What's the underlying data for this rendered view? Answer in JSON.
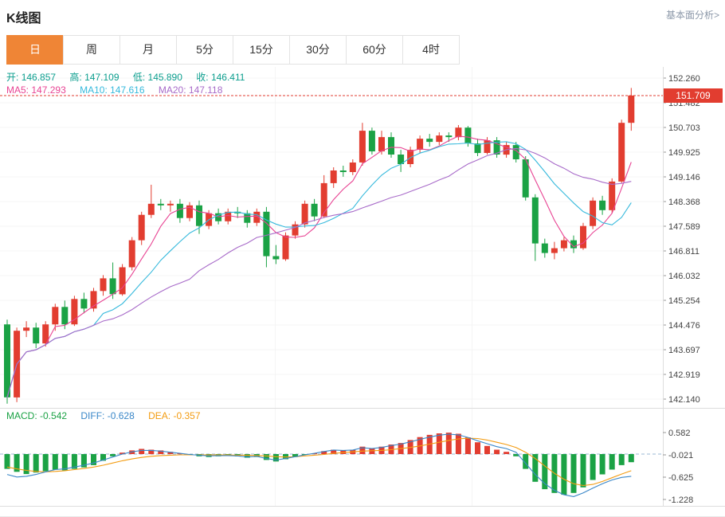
{
  "header": {
    "title": "K线图",
    "link": "基本面分析>"
  },
  "tabs": {
    "items": [
      {
        "label": "日",
        "active": true
      },
      {
        "label": "周",
        "active": false
      },
      {
        "label": "月",
        "active": false
      },
      {
        "label": "5分",
        "active": false
      },
      {
        "label": "15分",
        "active": false
      },
      {
        "label": "30分",
        "active": false
      },
      {
        "label": "60分",
        "active": false
      },
      {
        "label": "4时",
        "active": false
      }
    ]
  },
  "legend": {
    "ohlc": {
      "open_label": "开:",
      "open": "146.857",
      "high_label": "高:",
      "high": "147.109",
      "low_label": "低:",
      "low": "145.890",
      "close_label": "收:",
      "close": "146.411"
    },
    "ma": {
      "ma5_label": "MA5:",
      "ma5": "147.293",
      "ma10_label": "MA10:",
      "ma10": "147.616",
      "ma20_label": "MA20:",
      "ma20": "147.118"
    },
    "macd": {
      "macd_label": "MACD:",
      "macd": "-0.542",
      "diff_label": "DIFF:",
      "diff": "-0.628",
      "dea_label": "DEA:",
      "dea": "-0.357"
    }
  },
  "colors": {
    "up": "#e23d30",
    "down": "#1ba245",
    "ma5": "#e84393",
    "ma10": "#35b9dc",
    "ma20": "#a86bc9",
    "diff": "#3a87c8",
    "dea": "#f39c12",
    "accent": "#ef8536",
    "ohlc_text": "#0b9e8e",
    "link_text": "#8b97a8",
    "axis_text": "#444444",
    "grid": "#f4f4f4",
    "border": "#dddddd",
    "zero_line": "#9bb8d4"
  },
  "chart_data": {
    "type": "candlestick",
    "title": "K线图",
    "period_selected": "日",
    "last_price": "151.709",
    "y_ticks": [
      "152.260",
      "151.482",
      "150.703",
      "149.925",
      "149.146",
      "148.368",
      "147.589",
      "146.811",
      "146.032",
      "145.254",
      "144.476",
      "143.697",
      "142.919",
      "142.140"
    ],
    "ma_periods": [
      5,
      10,
      20
    ],
    "candles": [
      [
        144.5,
        144.65,
        142.0,
        142.2
      ],
      [
        142.2,
        144.4,
        142.05,
        144.3
      ],
      [
        144.3,
        144.6,
        144.1,
        144.4
      ],
      [
        144.4,
        144.55,
        143.75,
        143.9
      ],
      [
        143.9,
        144.6,
        143.8,
        144.5
      ],
      [
        144.5,
        145.15,
        144.3,
        145.05
      ],
      [
        145.05,
        145.25,
        144.35,
        144.5
      ],
      [
        144.5,
        145.4,
        144.45,
        145.3
      ],
      [
        145.3,
        145.5,
        144.85,
        145.0
      ],
      [
        145.0,
        145.65,
        144.9,
        145.55
      ],
      [
        145.55,
        146.05,
        145.4,
        145.95
      ],
      [
        145.95,
        146.45,
        145.3,
        145.45
      ],
      [
        145.45,
        146.4,
        145.4,
        146.3
      ],
      [
        146.3,
        147.25,
        146.2,
        147.15
      ],
      [
        147.15,
        148.05,
        147.0,
        147.95
      ],
      [
        147.95,
        148.9,
        147.85,
        148.3
      ],
      [
        148.3,
        148.45,
        148.1,
        148.25
      ],
      [
        148.25,
        148.4,
        148.05,
        148.3
      ],
      [
        148.3,
        148.45,
        147.7,
        147.85
      ],
      [
        147.85,
        148.35,
        147.75,
        148.25
      ],
      [
        148.25,
        148.4,
        147.35,
        147.6
      ],
      [
        147.6,
        148.1,
        147.5,
        148.0
      ],
      [
        148.0,
        148.15,
        147.65,
        147.75
      ],
      [
        147.75,
        148.15,
        147.65,
        148.05
      ],
      [
        148.05,
        148.2,
        147.85,
        148.0
      ],
      [
        148.0,
        148.1,
        147.55,
        147.7
      ],
      [
        147.7,
        148.15,
        147.6,
        148.05
      ],
      [
        148.05,
        148.2,
        146.3,
        146.65
      ],
      [
        146.65,
        147.0,
        146.4,
        146.55
      ],
      [
        146.55,
        147.4,
        146.5,
        147.3
      ],
      [
        147.3,
        147.75,
        147.2,
        147.65
      ],
      [
        147.65,
        148.4,
        147.55,
        148.3
      ],
      [
        148.3,
        148.45,
        147.75,
        147.9
      ],
      [
        147.9,
        149.2,
        147.85,
        148.95
      ],
      [
        148.95,
        149.45,
        148.8,
        149.35
      ],
      [
        149.35,
        149.5,
        149.15,
        149.3
      ],
      [
        149.3,
        149.7,
        149.2,
        149.6
      ],
      [
        149.6,
        150.85,
        149.5,
        150.6
      ],
      [
        150.6,
        150.7,
        149.85,
        149.95
      ],
      [
        149.95,
        150.6,
        149.85,
        150.4
      ],
      [
        150.4,
        150.55,
        149.75,
        149.85
      ],
      [
        149.85,
        150.0,
        149.3,
        149.55
      ],
      [
        149.55,
        150.1,
        149.45,
        150.0
      ],
      [
        150.0,
        150.45,
        149.9,
        150.35
      ],
      [
        150.35,
        150.5,
        150.1,
        150.25
      ],
      [
        150.25,
        150.55,
        150.15,
        150.45
      ],
      [
        150.45,
        150.55,
        150.25,
        150.4
      ],
      [
        150.4,
        150.78,
        150.3,
        150.7
      ],
      [
        150.7,
        150.75,
        150.1,
        150.2
      ],
      [
        150.2,
        150.35,
        149.8,
        149.9
      ],
      [
        149.9,
        150.4,
        149.85,
        150.3
      ],
      [
        150.3,
        150.4,
        149.75,
        149.85
      ],
      [
        149.85,
        150.25,
        149.75,
        150.15
      ],
      [
        150.15,
        150.25,
        149.6,
        149.7
      ],
      [
        149.7,
        149.8,
        148.4,
        148.5
      ],
      [
        148.5,
        148.6,
        146.5,
        147.05
      ],
      [
        147.05,
        147.2,
        146.6,
        146.75
      ],
      [
        146.75,
        147.1,
        146.55,
        146.9
      ],
      [
        146.9,
        147.25,
        146.8,
        147.15
      ],
      [
        147.15,
        147.3,
        146.75,
        146.9
      ],
      [
        146.9,
        147.7,
        146.85,
        147.6
      ],
      [
        147.6,
        148.5,
        147.5,
        148.4
      ],
      [
        148.4,
        148.55,
        147.95,
        148.1
      ],
      [
        148.1,
        149.1,
        148.0,
        149.0
      ],
      [
        149.0,
        150.95,
        148.95,
        150.85
      ],
      [
        150.85,
        151.95,
        150.6,
        151.71
      ]
    ],
    "macd": {
      "y_ticks": [
        "0.582",
        "-0.021",
        "-0.625",
        "-1.228"
      ],
      "histogram": [
        -0.4,
        -0.48,
        -0.54,
        -0.5,
        -0.46,
        -0.42,
        -0.44,
        -0.4,
        -0.36,
        -0.3,
        -0.18,
        -0.06,
        0.04,
        0.1,
        0.14,
        0.12,
        0.1,
        0.06,
        0.02,
        -0.02,
        -0.06,
        -0.08,
        -0.06,
        -0.05,
        -0.06,
        -0.1,
        -0.08,
        -0.16,
        -0.2,
        -0.14,
        -0.08,
        -0.02,
        0.02,
        0.08,
        0.12,
        0.1,
        0.12,
        0.2,
        0.16,
        0.2,
        0.26,
        0.3,
        0.38,
        0.46,
        0.52,
        0.56,
        0.58,
        0.55,
        0.45,
        0.32,
        0.22,
        0.12,
        0.06,
        -0.06,
        -0.4,
        -0.75,
        -0.95,
        -1.05,
        -1.1,
        -1.05,
        -0.9,
        -0.7,
        -0.55,
        -0.42,
        -0.3,
        -0.22
      ],
      "diff": [
        -0.55,
        -0.62,
        -0.6,
        -0.55,
        -0.48,
        -0.42,
        -0.4,
        -0.35,
        -0.3,
        -0.24,
        -0.16,
        -0.08,
        0.0,
        0.06,
        0.1,
        0.1,
        0.08,
        0.05,
        0.02,
        -0.01,
        -0.03,
        -0.05,
        -0.04,
        -0.04,
        -0.05,
        -0.08,
        -0.06,
        -0.12,
        -0.16,
        -0.12,
        -0.07,
        -0.02,
        0.02,
        0.07,
        0.11,
        0.1,
        0.11,
        0.17,
        0.15,
        0.18,
        0.23,
        0.27,
        0.33,
        0.4,
        0.46,
        0.51,
        0.54,
        0.52,
        0.45,
        0.36,
        0.28,
        0.2,
        0.15,
        0.05,
        -0.25,
        -0.55,
        -0.8,
        -0.98,
        -1.1,
        -1.15,
        -1.05,
        -0.92,
        -0.8,
        -0.7,
        -0.63,
        -0.6
      ],
      "dea": [
        -0.35,
        -0.4,
        -0.44,
        -0.47,
        -0.48,
        -0.47,
        -0.45,
        -0.42,
        -0.39,
        -0.35,
        -0.3,
        -0.24,
        -0.18,
        -0.13,
        -0.09,
        -0.06,
        -0.04,
        -0.03,
        -0.02,
        -0.02,
        -0.02,
        -0.02,
        -0.02,
        -0.02,
        -0.03,
        -0.03,
        -0.04,
        -0.05,
        -0.07,
        -0.08,
        -0.07,
        -0.05,
        -0.03,
        -0.01,
        0.02,
        0.04,
        0.06,
        0.08,
        0.09,
        0.1,
        0.12,
        0.15,
        0.18,
        0.22,
        0.27,
        0.32,
        0.37,
        0.41,
        0.43,
        0.42,
        0.38,
        0.32,
        0.26,
        0.18,
        0.05,
        -0.12,
        -0.32,
        -0.52,
        -0.68,
        -0.8,
        -0.85,
        -0.82,
        -0.74,
        -0.64,
        -0.54,
        -0.45
      ]
    }
  }
}
